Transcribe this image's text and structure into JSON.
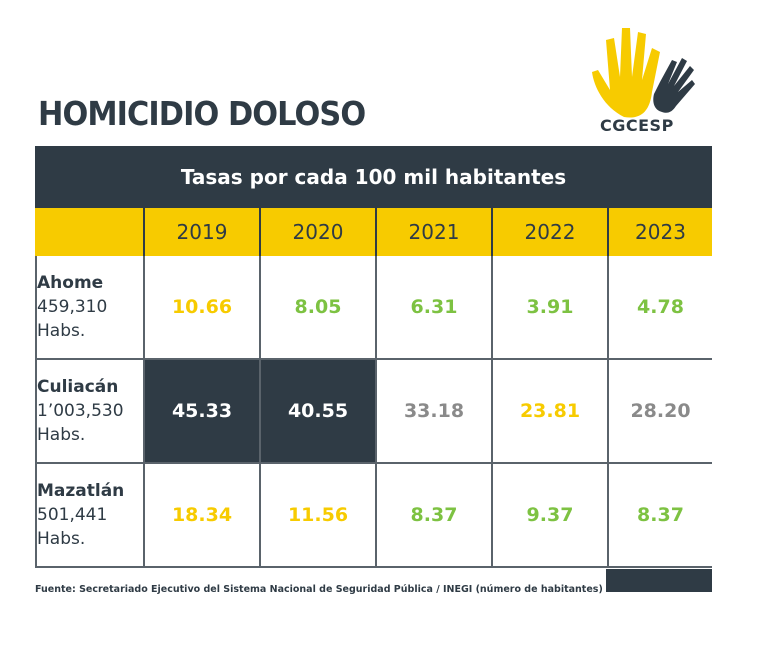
{
  "title": "HOMICIDIO DOLOSO",
  "logo_text": "CGCESP",
  "colors": {
    "dark": "#2f3b45",
    "yellow": "#f7cb00",
    "green": "#7dc242",
    "gray": "#8a8a8a"
  },
  "chart_data": {
    "type": "table",
    "title": "Tasas por cada 100 mil habitantes",
    "columns": [
      "2019",
      "2020",
      "2021",
      "2022",
      "2023"
    ],
    "rows": [
      {
        "city": "Ahome",
        "population": "459,310",
        "unit": "Habs.",
        "values": [
          "10.66",
          "8.05",
          "6.31",
          "3.91",
          "4.78"
        ],
        "styles": [
          "yellow",
          "green",
          "green",
          "green",
          "green"
        ]
      },
      {
        "city": "Culiacán",
        "population": "1’003,530",
        "unit": "Habs.",
        "values": [
          "45.33",
          "40.55",
          "33.18",
          "23.81",
          "28.20"
        ],
        "styles": [
          "dark",
          "dark",
          "gray",
          "yellow",
          "gray"
        ]
      },
      {
        "city": "Mazatlán",
        "population": "501,441",
        "unit": "Habs.",
        "values": [
          "18.34",
          "11.56",
          "8.37",
          "9.37",
          "8.37"
        ],
        "styles": [
          "yellow",
          "yellow",
          "green",
          "green",
          "green"
        ]
      }
    ]
  },
  "source": "Fuente: Secretariado Ejecutivo del Sistema Nacional de Seguridad Pública / INEGI (número de habitantes)"
}
